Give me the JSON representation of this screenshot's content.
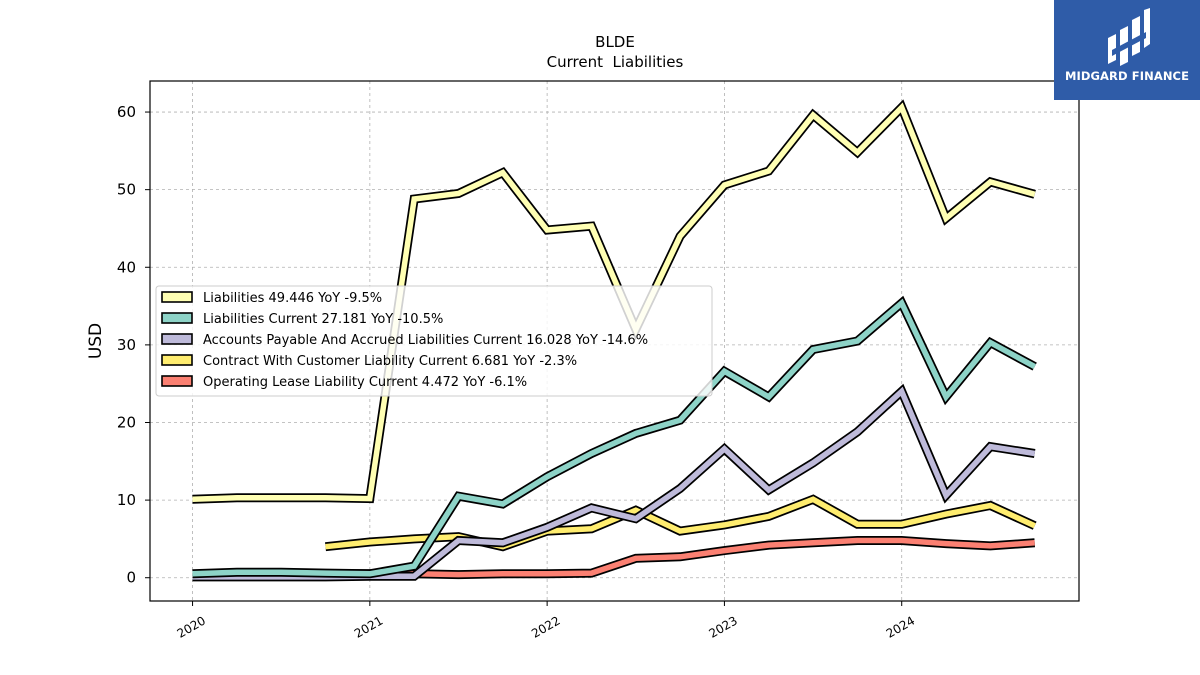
{
  "chart_data": {
    "type": "line",
    "title": "BLDE",
    "subtitle": "Current  Liabilities",
    "ylabel": "USD",
    "xlabel": "",
    "ylim": [
      -3,
      64
    ],
    "yticks": [
      0,
      10,
      20,
      30,
      40,
      50,
      60
    ],
    "xlim": [
      2019.76,
      2025.0
    ],
    "xticks": [
      2020,
      2021,
      2022,
      2023,
      2024
    ],
    "xtick_labels": [
      "2020",
      "2021",
      "2022",
      "2023",
      "2024"
    ],
    "grid": true,
    "legend_position": "center-left",
    "series": [
      {
        "name": "Liabilities",
        "legend": "Liabilities  49.446 YoY -9.5%",
        "color": "#ffffb3",
        "x": [
          2020.0,
          2020.25,
          2020.5,
          2020.75,
          2021.0,
          2021.25,
          2021.5,
          2021.75,
          2022.0,
          2022.25,
          2022.5,
          2022.75,
          2023.0,
          2023.25,
          2023.5,
          2023.75,
          2024.0,
          2024.25,
          2024.5,
          2024.75
        ],
        "values": [
          10.1,
          10.3,
          10.3,
          10.3,
          10.2,
          48.8,
          49.5,
          52.2,
          44.8,
          45.3,
          32.0,
          44.0,
          50.6,
          52.4,
          59.6,
          54.8,
          60.6,
          46.3,
          51.0,
          49.4
        ]
      },
      {
        "name": "Liabilities Current",
        "legend": "Liabilities Current  27.181 YoY -10.5%",
        "color": "#8dd3c7",
        "x": [
          2020.0,
          2020.25,
          2020.5,
          2020.75,
          2021.0,
          2021.25,
          2021.5,
          2021.75,
          2022.0,
          2022.25,
          2022.5,
          2022.75,
          2023.0,
          2023.25,
          2023.5,
          2023.75,
          2024.0,
          2024.25,
          2024.5,
          2024.75
        ],
        "values": [
          0.5,
          0.7,
          0.7,
          0.6,
          0.5,
          1.5,
          10.5,
          9.5,
          13.0,
          16.0,
          18.6,
          20.3,
          26.6,
          23.3,
          29.4,
          30.5,
          35.4,
          23.3,
          30.3,
          27.2
        ]
      },
      {
        "name": "Accounts Payable And Accrued Liabilities Current",
        "legend": "Accounts Payable And Accrued Liabilities Current  16.028 YoY -14.6%",
        "color": "#bebada",
        "x": [
          2020.0,
          2020.25,
          2020.5,
          2020.75,
          2021.0,
          2021.25,
          2021.5,
          2021.75,
          2022.0,
          2022.25,
          2022.5,
          2022.75,
          2023.0,
          2023.25,
          2023.5,
          2023.75,
          2024.0,
          2024.25,
          2024.5,
          2024.75
        ],
        "values": [
          0.1,
          0.1,
          0.1,
          0.1,
          0.2,
          0.2,
          4.8,
          4.5,
          6.5,
          9.0,
          7.6,
          11.5,
          16.6,
          11.3,
          14.8,
          18.8,
          24.0,
          10.6,
          16.9,
          16.0
        ]
      },
      {
        "name": "Contract With Customer Liability Current",
        "legend": "Contract With Customer Liability Current  6.681 YoY -2.3%",
        "color": "#ffed6f",
        "x": [
          2020.75,
          2021.0,
          2021.25,
          2021.5,
          2021.75,
          2022.0,
          2022.25,
          2022.5,
          2022.75,
          2023.0,
          2023.25,
          2023.5,
          2023.75,
          2024.0,
          2024.25,
          2024.5,
          2024.75
        ],
        "values": [
          4.0,
          4.6,
          5.0,
          5.3,
          4.0,
          6.0,
          6.3,
          8.7,
          6.0,
          6.8,
          7.9,
          10.1,
          6.9,
          6.9,
          8.2,
          9.3,
          6.7
        ]
      },
      {
        "name": "Operating Lease Liability Current",
        "legend": "Operating Lease Liability Current  4.472 YoY -6.1%",
        "color": "#fb8072",
        "x": [
          2020.5,
          2020.75,
          2021.0,
          2021.25,
          2021.5,
          2021.75,
          2022.0,
          2022.25,
          2022.5,
          2022.75,
          2023.0,
          2023.25,
          2023.5,
          2023.75,
          2024.0,
          2024.25,
          2024.5,
          2024.75
        ],
        "values": [
          0.5,
          0.5,
          0.5,
          0.5,
          0.4,
          0.5,
          0.5,
          0.6,
          2.5,
          2.7,
          3.5,
          4.2,
          4.5,
          4.8,
          4.8,
          4.4,
          4.1,
          4.5
        ]
      }
    ]
  },
  "logo": {
    "text": "MIDGARD FINANCE",
    "background": "#2f5ca8"
  }
}
